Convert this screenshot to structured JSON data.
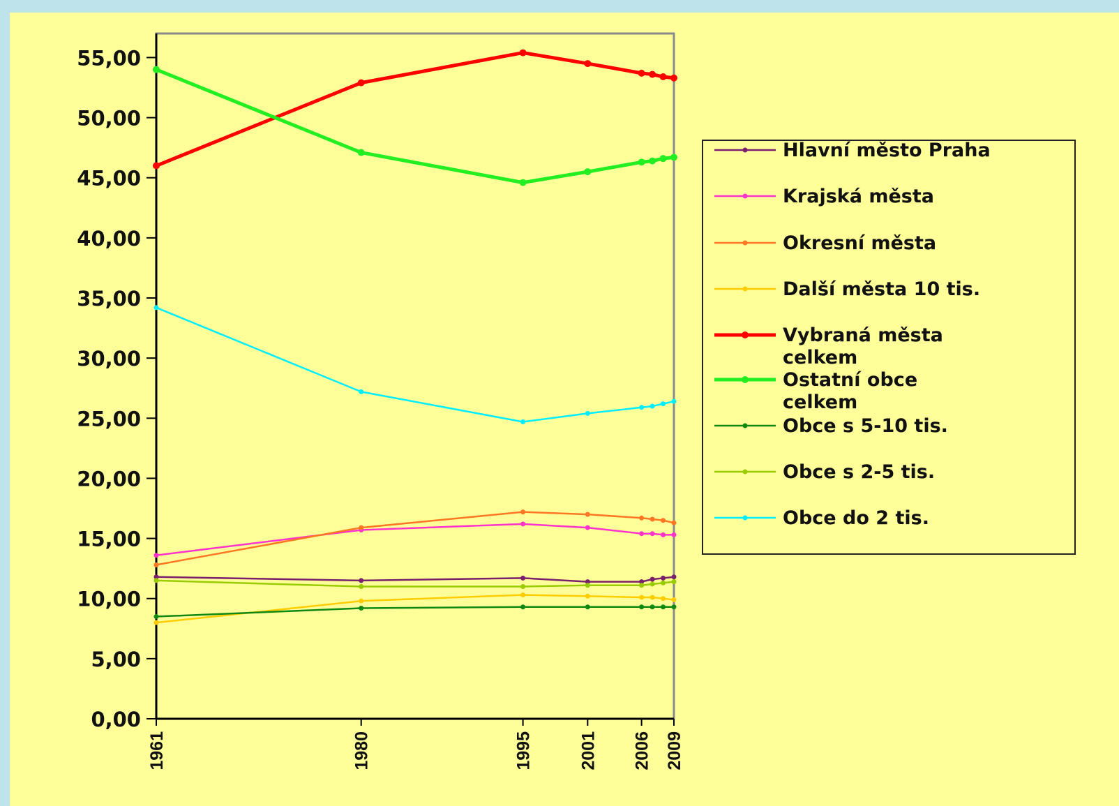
{
  "chart_data": {
    "type": "line",
    "x": [
      1961,
      1980,
      1995,
      2001,
      2006,
      2007,
      2008,
      2009
    ],
    "x_tick_labels": [
      "1961",
      "1980",
      "1995",
      "2001",
      "2006",
      "2009"
    ],
    "x_ticks": [
      1961,
      1980,
      1995,
      2001,
      2006,
      2009
    ],
    "y_tick_labels": [
      "0,00",
      "5,00",
      "10,00",
      "15,00",
      "20,00",
      "25,00",
      "30,00",
      "35,00",
      "40,00",
      "45,00",
      "50,00",
      "55,00"
    ],
    "ylim": [
      0,
      57
    ],
    "grid": false,
    "legend_position": "right",
    "series": [
      {
        "name": "Hlavní město Praha",
        "color": "#7a1f6b",
        "values": [
          11.8,
          11.5,
          11.7,
          11.4,
          11.4,
          11.6,
          11.7,
          11.8
        ]
      },
      {
        "name": "Krajská města",
        "color": "#ff33cc",
        "values": [
          13.6,
          15.7,
          16.2,
          15.9,
          15.4,
          15.4,
          15.3,
          15.3
        ]
      },
      {
        "name": "Okresní města",
        "color": "#ff7722",
        "values": [
          12.8,
          15.9,
          17.2,
          17.0,
          16.7,
          16.6,
          16.5,
          16.3
        ]
      },
      {
        "name": "Další města 10 tis.",
        "color": "#ffcc00",
        "values": [
          8.0,
          9.8,
          10.3,
          10.2,
          10.1,
          10.1,
          10.0,
          9.9
        ]
      },
      {
        "name": "Vybraná města celkem",
        "name_lines": [
          "Vybraná města",
          "celkem"
        ],
        "color": "#ff0000",
        "bold": true,
        "values": [
          46.0,
          52.9,
          55.4,
          54.5,
          53.7,
          53.6,
          53.4,
          53.3
        ]
      },
      {
        "name": "Ostatní obce celkem",
        "name_lines": [
          "Ostatní obce",
          "celkem"
        ],
        "color": "#22ee22",
        "bold": true,
        "values": [
          54.0,
          47.1,
          44.6,
          45.5,
          46.3,
          46.4,
          46.6,
          46.7
        ]
      },
      {
        "name": "Obce s 5-10 tis.",
        "color": "#118811",
        "values": [
          8.5,
          9.2,
          9.3,
          9.3,
          9.3,
          9.3,
          9.3,
          9.3
        ]
      },
      {
        "name": "Obce s 2-5 tis.",
        "color": "#99cc00",
        "values": [
          11.5,
          11.0,
          11.0,
          11.1,
          11.1,
          11.2,
          11.3,
          11.4
        ]
      },
      {
        "name": "Obce do 2 tis.",
        "color": "#00eeff",
        "values": [
          34.2,
          27.2,
          24.7,
          25.4,
          25.9,
          26.0,
          26.2,
          26.4
        ]
      }
    ]
  }
}
